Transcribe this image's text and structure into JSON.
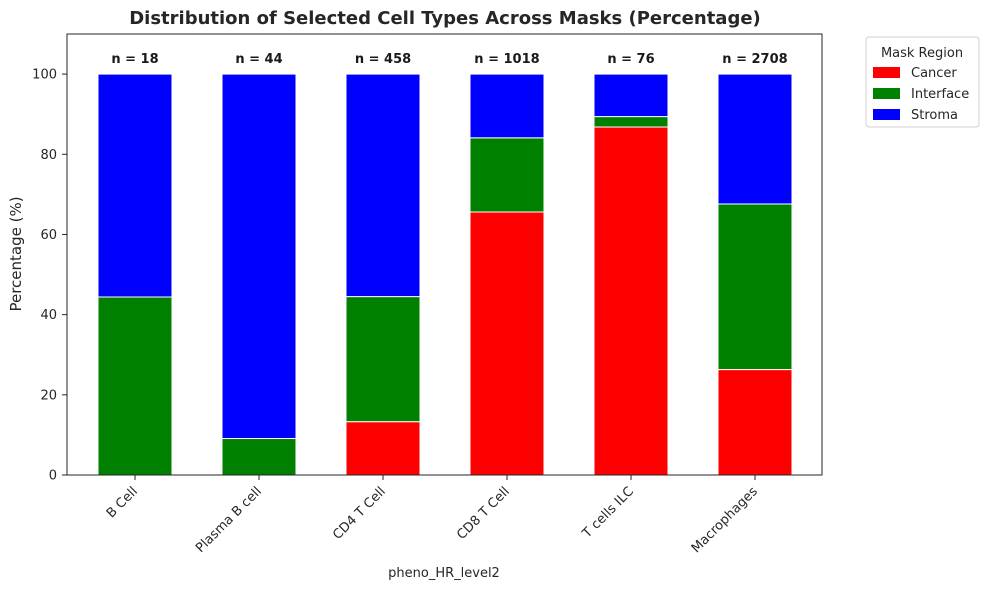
{
  "chart_data": {
    "type": "bar",
    "stacked": true,
    "title": "Distribution of Selected Cell Types Across Masks (Percentage)",
    "xlabel": "pheno_HR_level2",
    "ylabel": "Percentage (%)",
    "ylim": [
      0,
      110
    ],
    "yticks": [
      0,
      20,
      40,
      60,
      80,
      100
    ],
    "grid": false,
    "legend_title": "Mask Region",
    "legend_position": "outside top-right",
    "categories": [
      "B Cell",
      "Plasma B cell",
      "CD4 T Cell",
      "CD8 T Cell",
      "T cells ILC",
      "Macrophages"
    ],
    "counts": [
      "n = 18",
      "n = 44",
      "n = 458",
      "n = 1018",
      "n = 76",
      "n = 2708"
    ],
    "series": [
      {
        "name": "Cancer",
        "color": "#ff0000",
        "values": [
          0,
          0,
          13.3,
          65.6,
          86.8,
          26.3
        ]
      },
      {
        "name": "Interface",
        "color": "#008000",
        "values": [
          44.4,
          9.1,
          31.2,
          18.5,
          2.6,
          41.3
        ]
      },
      {
        "name": "Stroma",
        "color": "#0000ff",
        "values": [
          55.6,
          90.9,
          55.5,
          15.9,
          10.6,
          32.4
        ]
      }
    ]
  }
}
